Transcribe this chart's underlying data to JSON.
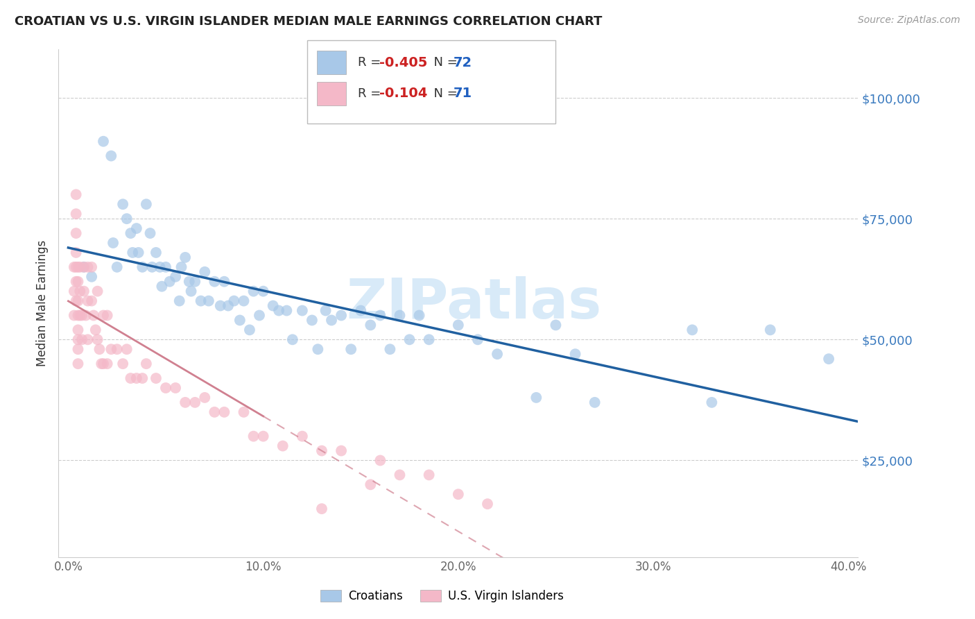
{
  "title": "CROATIAN VS U.S. VIRGIN ISLANDER MEDIAN MALE EARNINGS CORRELATION CHART",
  "source": "Source: ZipAtlas.com",
  "xlabel_ticks": [
    "0.0%",
    "10.0%",
    "20.0%",
    "30.0%",
    "40.0%"
  ],
  "xlabel_tick_vals": [
    0.0,
    0.1,
    0.2,
    0.3,
    0.4
  ],
  "ylabel": "Median Male Earnings",
  "ylabel_ticks": [
    "$25,000",
    "$50,000",
    "$75,000",
    "$100,000"
  ],
  "ylabel_tick_vals": [
    25000,
    50000,
    75000,
    100000
  ],
  "xlim": [
    -0.005,
    0.405
  ],
  "ylim": [
    5000,
    110000
  ],
  "croatian_R": -0.405,
  "croatian_N": 72,
  "vi_R": -0.104,
  "vi_N": 71,
  "croatian_color": "#a8c8e8",
  "vi_color": "#f4b8c8",
  "trendline_croatian_color": "#2060a0",
  "trendline_vi_color": "#d08090",
  "watermark_color": "#d8eaf8",
  "watermark": "ZIPatlas",
  "legend_label_croatian": "Croatians",
  "legend_label_vi": "U.S. Virgin Islanders",
  "r_color": "#cc2222",
  "n_color": "#2060c0",
  "text_color": "#333333",
  "croatian_x": [
    0.008,
    0.012,
    0.018,
    0.022,
    0.023,
    0.025,
    0.028,
    0.03,
    0.032,
    0.033,
    0.035,
    0.036,
    0.038,
    0.04,
    0.042,
    0.043,
    0.045,
    0.047,
    0.048,
    0.05,
    0.052,
    0.055,
    0.057,
    0.058,
    0.06,
    0.062,
    0.063,
    0.065,
    0.068,
    0.07,
    0.072,
    0.075,
    0.078,
    0.08,
    0.082,
    0.085,
    0.088,
    0.09,
    0.093,
    0.095,
    0.098,
    0.1,
    0.105,
    0.108,
    0.112,
    0.115,
    0.12,
    0.125,
    0.128,
    0.132,
    0.135,
    0.14,
    0.145,
    0.15,
    0.155,
    0.16,
    0.165,
    0.17,
    0.175,
    0.18,
    0.185,
    0.2,
    0.21,
    0.22,
    0.24,
    0.25,
    0.26,
    0.27,
    0.32,
    0.33,
    0.36,
    0.39
  ],
  "croatian_y": [
    65000,
    63000,
    91000,
    88000,
    70000,
    65000,
    78000,
    75000,
    72000,
    68000,
    73000,
    68000,
    65000,
    78000,
    72000,
    65000,
    68000,
    65000,
    61000,
    65000,
    62000,
    63000,
    58000,
    65000,
    67000,
    62000,
    60000,
    62000,
    58000,
    64000,
    58000,
    62000,
    57000,
    62000,
    57000,
    58000,
    54000,
    58000,
    52000,
    60000,
    55000,
    60000,
    57000,
    56000,
    56000,
    50000,
    56000,
    54000,
    48000,
    56000,
    54000,
    55000,
    48000,
    56000,
    53000,
    55000,
    48000,
    55000,
    50000,
    55000,
    50000,
    53000,
    50000,
    47000,
    38000,
    53000,
    47000,
    37000,
    52000,
    37000,
    52000,
    46000
  ],
  "vi_x": [
    0.003,
    0.003,
    0.003,
    0.004,
    0.004,
    0.004,
    0.004,
    0.004,
    0.004,
    0.004,
    0.005,
    0.005,
    0.005,
    0.005,
    0.005,
    0.005,
    0.005,
    0.005,
    0.006,
    0.006,
    0.006,
    0.007,
    0.007,
    0.008,
    0.008,
    0.009,
    0.01,
    0.01,
    0.01,
    0.012,
    0.012,
    0.013,
    0.014,
    0.015,
    0.015,
    0.016,
    0.017,
    0.018,
    0.018,
    0.02,
    0.02,
    0.022,
    0.025,
    0.028,
    0.03,
    0.032,
    0.035,
    0.038,
    0.04,
    0.045,
    0.05,
    0.055,
    0.06,
    0.065,
    0.07,
    0.075,
    0.08,
    0.09,
    0.095,
    0.1,
    0.11,
    0.12,
    0.13,
    0.14,
    0.155,
    0.16,
    0.17,
    0.185,
    0.2,
    0.215,
    0.13
  ],
  "vi_y": [
    65000,
    60000,
    55000,
    80000,
    76000,
    72000,
    68000,
    65000,
    62000,
    58000,
    65000,
    62000,
    58000,
    55000,
    52000,
    50000,
    48000,
    45000,
    65000,
    60000,
    55000,
    55000,
    50000,
    65000,
    60000,
    55000,
    65000,
    58000,
    50000,
    65000,
    58000,
    55000,
    52000,
    60000,
    50000,
    48000,
    45000,
    55000,
    45000,
    55000,
    45000,
    48000,
    48000,
    45000,
    48000,
    42000,
    42000,
    42000,
    45000,
    42000,
    40000,
    40000,
    37000,
    37000,
    38000,
    35000,
    35000,
    35000,
    30000,
    30000,
    28000,
    30000,
    27000,
    27000,
    20000,
    25000,
    22000,
    22000,
    18000,
    16000,
    15000
  ]
}
